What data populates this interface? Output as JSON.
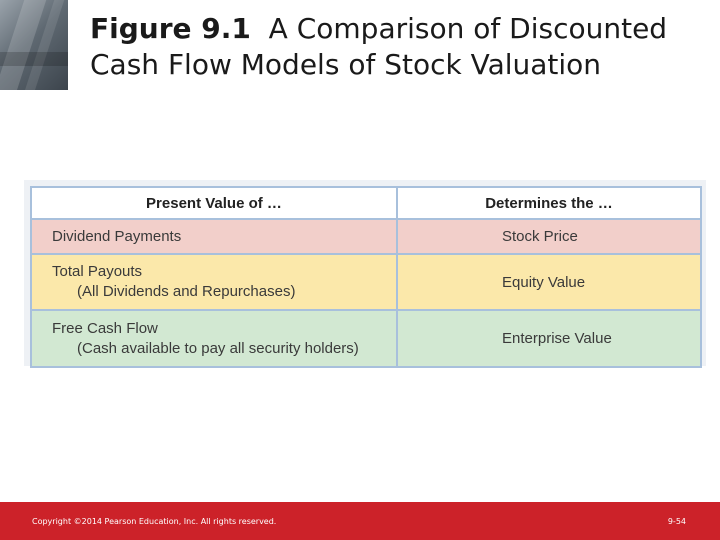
{
  "slide": {
    "title_bold": "Figure 9.1",
    "title_rest": "A Comparison of Discounted Cash Flow Models of Stock Valuation"
  },
  "table": {
    "headers": [
      "Present Value of …",
      "Determines the …"
    ],
    "rows": [
      {
        "left_main": "Dividend Payments",
        "left_sub": "",
        "right": "Stock Price",
        "color": "#f2cfca"
      },
      {
        "left_main": "Total Payouts",
        "left_sub": "(All Dividends and Repurchases)",
        "right": "Equity Value",
        "color": "#fbe8aa"
      },
      {
        "left_main": "Free Cash Flow",
        "left_sub": "(Cash available to pay all security holders)",
        "right": "Enterprise Value",
        "color": "#d2e8d2"
      }
    ]
  },
  "footer": {
    "copyright": "Copyright ©2014 Pearson Education, Inc. All rights reserved.",
    "page": "9-54",
    "color": "#cc2229"
  }
}
